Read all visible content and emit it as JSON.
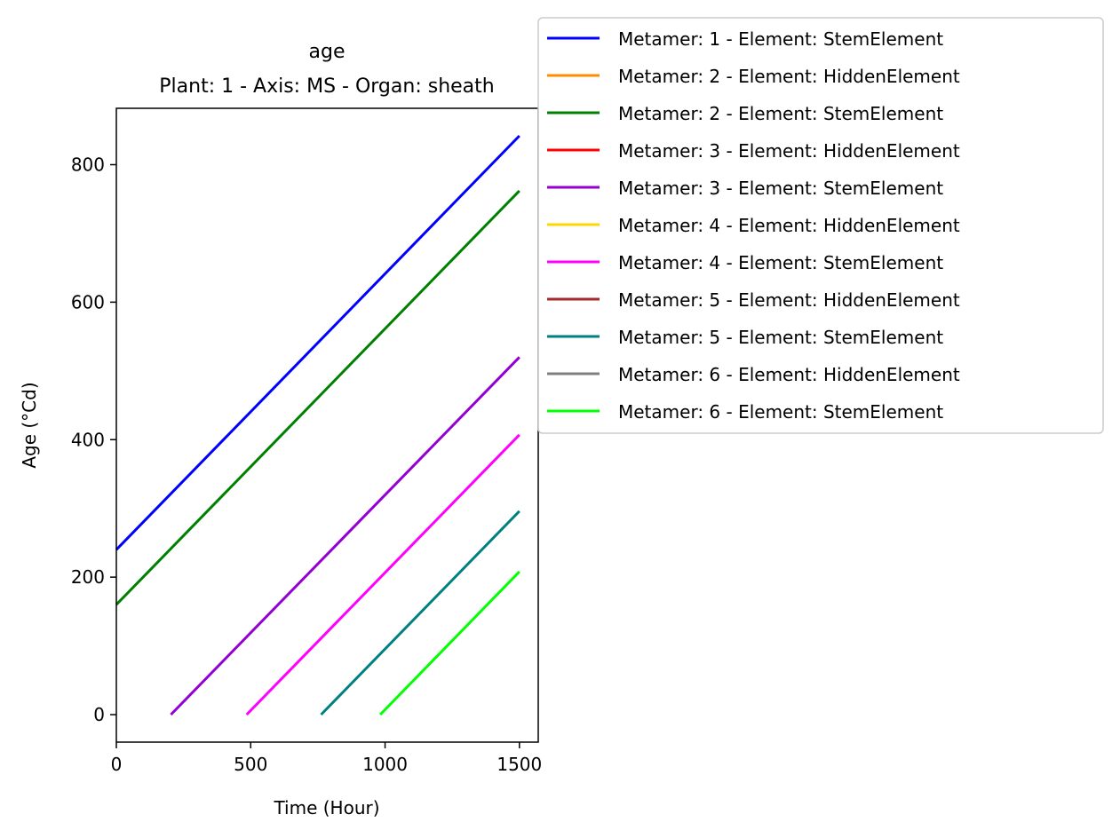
{
  "chart_data": {
    "type": "line",
    "title": "age",
    "subtitle": "Plant: 1 - Axis: MS - Organ: sheath",
    "xlabel": "Time (Hour)",
    "ylabel": "Age (°Cd)",
    "xlim": [
      0,
      1570
    ],
    "ylim": [
      -40,
      882
    ],
    "xticks": [
      0,
      500,
      1000,
      1500
    ],
    "yticks": [
      0,
      200,
      400,
      600,
      800
    ],
    "grid": false,
    "legend_position": "outside top-right",
    "series": [
      {
        "name": "Metamer: 1 - Element: StemElement",
        "color": "#0000ff",
        "x": [
          0,
          1500
        ],
        "y": [
          240,
          842
        ]
      },
      {
        "name": "Metamer: 2 - Element: HiddenElement",
        "color": "#ff8c00",
        "x": [],
        "y": []
      },
      {
        "name": "Metamer: 2 - Element: StemElement",
        "color": "#008000",
        "x": [
          0,
          1500
        ],
        "y": [
          160,
          762
        ]
      },
      {
        "name": "Metamer: 3 - Element: HiddenElement",
        "color": "#ff0000",
        "x": [],
        "y": []
      },
      {
        "name": "Metamer: 3 - Element: StemElement",
        "color": "#9400d3",
        "x": [
          203,
          1500
        ],
        "y": [
          0,
          520
        ]
      },
      {
        "name": "Metamer: 4 - Element: HiddenElement",
        "color": "#ffd700",
        "x": [],
        "y": []
      },
      {
        "name": "Metamer: 4 - Element: StemElement",
        "color": "#ff00ff",
        "x": [
          485,
          1500
        ],
        "y": [
          0,
          407
        ]
      },
      {
        "name": "Metamer: 5 - Element: HiddenElement",
        "color": "#a52a2a",
        "x": [],
        "y": []
      },
      {
        "name": "Metamer: 5 - Element: StemElement",
        "color": "#008080",
        "x": [
          762,
          1500
        ],
        "y": [
          0,
          296
        ]
      },
      {
        "name": "Metamer: 6 - Element: HiddenElement",
        "color": "#808080",
        "x": [],
        "y": []
      },
      {
        "name": "Metamer: 6 - Element: StemElement",
        "color": "#00ff00",
        "x": [
          982,
          1500
        ],
        "y": [
          0,
          208
        ]
      }
    ]
  }
}
